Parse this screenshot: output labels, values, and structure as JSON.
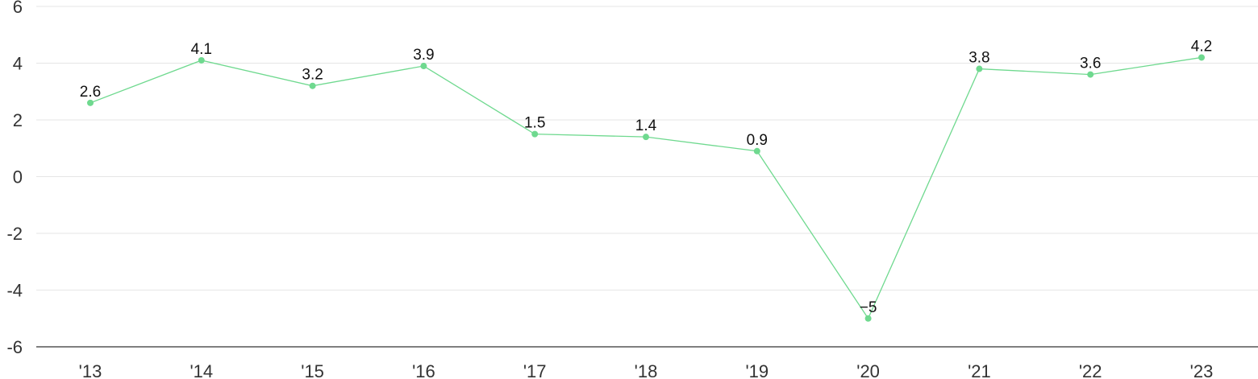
{
  "chart_data": {
    "type": "line",
    "title": "",
    "xlabel": "",
    "ylabel": "",
    "ylim": [
      -6,
      6
    ],
    "yticks": [
      "6",
      "4",
      "2",
      "0",
      "-2",
      "-4",
      "-6"
    ],
    "ytick_values": [
      6,
      4,
      2,
      0,
      -2,
      -4,
      -6
    ],
    "categories": [
      "'13",
      "'14",
      "'15",
      "'16",
      "'17",
      "'18",
      "'19",
      "'20",
      "'21",
      "'22",
      "'23"
    ],
    "series": [
      {
        "values": [
          2.6,
          4.1,
          3.2,
          3.9,
          1.5,
          1.4,
          0.9,
          -5,
          3.8,
          3.6,
          4.2
        ],
        "labels": [
          "2.6",
          "4.1",
          "3.2",
          "3.9",
          "1.5",
          "1.4",
          "0.9",
          "−5",
          "3.8",
          "3.6",
          "4.2"
        ],
        "color": "#6fd98f"
      }
    ],
    "grid": true,
    "legend": "none"
  }
}
